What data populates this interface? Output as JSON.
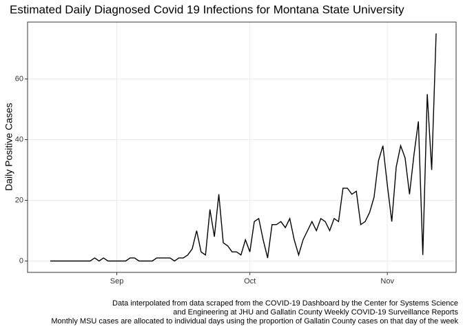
{
  "chart_data": {
    "type": "line",
    "title": "Estimated Daily Diagnosed Covid 19 Infections for Montana State University",
    "y_label": "Daily Positive Cases",
    "caption": [
      "Data interpolated from data scraped from the  COVID-19 Dashboard by the Center for Systems Science ",
      "and Engineering  at JHU and Gallatin County Weekly COVID-19 Surveillance Reports ",
      "Monthly MSU cases are allocated to individual days using the proportion of Gallatin County cases on that day of the week"
    ],
    "categories": [
      null,
      null,
      null,
      null,
      null,
      null,
      null,
      null,
      null,
      null,
      null,
      null,
      null,
      null,
      null,
      "Sep",
      null,
      null,
      null,
      null,
      null,
      null,
      null,
      null,
      null,
      null,
      null,
      null,
      null,
      null,
      null,
      null,
      null,
      null,
      null,
      null,
      null,
      null,
      null,
      null,
      null,
      null,
      null,
      null,
      null,
      "Oct",
      null,
      null,
      null,
      null,
      null,
      null,
      null,
      null,
      null,
      null,
      null,
      null,
      null,
      null,
      null,
      null,
      null,
      null,
      null,
      null,
      null,
      null,
      null,
      null,
      null,
      null,
      null,
      null,
      null,
      null,
      "Nov",
      null,
      null,
      null,
      null,
      null,
      null,
      null,
      null,
      null,
      null,
      null
    ],
    "series": [
      {
        "color": "#000000",
        "values": [
          0,
          0,
          0,
          0,
          0,
          0,
          0,
          0,
          0,
          0,
          1,
          0,
          1,
          0,
          0,
          0,
          0,
          0,
          1,
          1,
          0,
          0,
          0,
          0,
          1,
          1,
          1,
          1,
          0,
          1,
          1,
          2,
          4,
          10,
          3,
          2,
          17,
          8,
          22,
          6,
          5,
          3,
          3,
          2,
          7,
          3,
          13,
          14,
          7,
          1,
          12,
          12,
          13,
          11,
          14,
          7,
          2,
          7,
          10,
          13,
          10,
          14,
          13,
          10,
          14,
          13,
          24,
          24,
          22,
          23,
          12,
          13,
          16,
          21,
          33,
          38,
          25,
          13,
          31,
          38,
          34,
          22,
          35,
          46,
          2,
          55,
          30,
          75
        ]
      }
    ],
    "ylim": [
      -3.75,
      78.75
    ],
    "yticks": [
      0,
      20,
      40,
      60
    ],
    "grid": true
  }
}
